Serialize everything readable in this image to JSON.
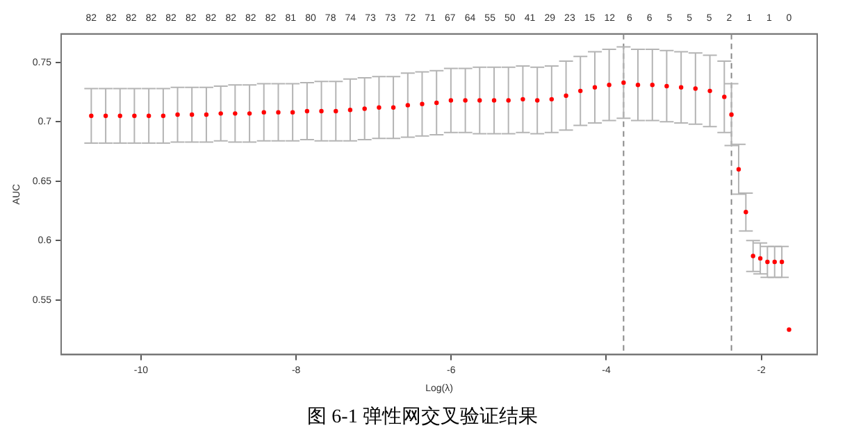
{
  "chart_data": {
    "type": "scatter",
    "title": "图 6-1 弹性网交叉验证结果",
    "xlabel": "Log(λ)",
    "ylabel": "AUC",
    "xlim": [
      -11.03,
      -1.28
    ],
    "xticks": [
      -10,
      -8,
      -6,
      -4,
      -2
    ],
    "ylim": [
      0.504,
      0.774
    ],
    "yticks": [
      0.55,
      0.6,
      0.65,
      0.7,
      0.75
    ],
    "annotations": [
      "82",
      "82",
      "82",
      "82",
      "82",
      "82",
      "82",
      "82",
      "82",
      "82",
      "81",
      "80",
      "78",
      "74",
      "73",
      "73",
      "72",
      "71",
      "67",
      "64",
      "55",
      "50",
      "41",
      "29",
      "23",
      "15",
      "12",
      "6",
      "6",
      "5",
      "5",
      "5",
      "2",
      "1",
      "1",
      "0"
    ],
    "series": [
      {
        "color": "#ff0000",
        "x": [
          -10.642,
          -10.456,
          -10.271,
          -10.086,
          -9.9,
          -9.714,
          -9.529,
          -9.344,
          -9.158,
          -8.972,
          -8.787,
          -8.601,
          -8.416,
          -8.23,
          -8.045,
          -7.859,
          -7.674,
          -7.488,
          -7.303,
          -7.117,
          -6.931,
          -6.746,
          -6.56,
          -6.375,
          -6.189,
          -6.004,
          -5.818,
          -5.633,
          -5.447,
          -5.262,
          -5.076,
          -4.89,
          -4.705,
          -4.519,
          -4.334,
          -4.148,
          -3.963,
          -3.777,
          -3.592,
          -3.406,
          -3.221,
          -3.035,
          -2.85,
          -2.664,
          -2.478,
          -2.386,
          -2.293,
          -2.2,
          -2.107,
          -2.014,
          -1.922,
          -1.829,
          -1.736,
          -1.643
        ],
        "values": [
          0.705,
          0.705,
          0.705,
          0.705,
          0.705,
          0.705,
          0.706,
          0.706,
          0.706,
          0.707,
          0.707,
          0.707,
          0.708,
          0.708,
          0.708,
          0.709,
          0.709,
          0.709,
          0.71,
          0.711,
          0.712,
          0.712,
          0.714,
          0.715,
          0.716,
          0.718,
          0.718,
          0.718,
          0.718,
          0.718,
          0.719,
          0.718,
          0.719,
          0.722,
          0.726,
          0.729,
          0.731,
          0.733,
          0.731,
          0.731,
          0.73,
          0.729,
          0.728,
          0.726,
          0.721,
          0.706,
          0.66,
          0.624,
          0.587,
          0.585,
          0.582,
          0.582,
          0.582,
          0.525
        ],
        "errors": [
          0.023,
          0.023,
          0.023,
          0.023,
          0.023,
          0.023,
          0.023,
          0.023,
          0.023,
          0.023,
          0.024,
          0.024,
          0.024,
          0.024,
          0.024,
          0.024,
          0.025,
          0.025,
          0.026,
          0.026,
          0.026,
          0.026,
          0.027,
          0.027,
          0.027,
          0.027,
          0.027,
          0.028,
          0.028,
          0.028,
          0.028,
          0.028,
          0.028,
          0.029,
          0.029,
          0.03,
          0.03,
          0.03,
          0.03,
          0.03,
          0.03,
          0.03,
          0.03,
          0.03,
          0.03,
          0.026,
          0.021,
          0.016,
          0.013,
          0.013,
          0.013,
          0.013,
          0.013,
          null
        ]
      }
    ],
    "ref_lines": [
      {
        "axis": "x",
        "value": -3.777,
        "color": "#888888",
        "line_style": "dashed"
      },
      {
        "axis": "x",
        "value": -2.386,
        "color": "#888888",
        "line_style": "dashed"
      }
    ],
    "marker": "circle",
    "grid": false,
    "legend": false
  }
}
